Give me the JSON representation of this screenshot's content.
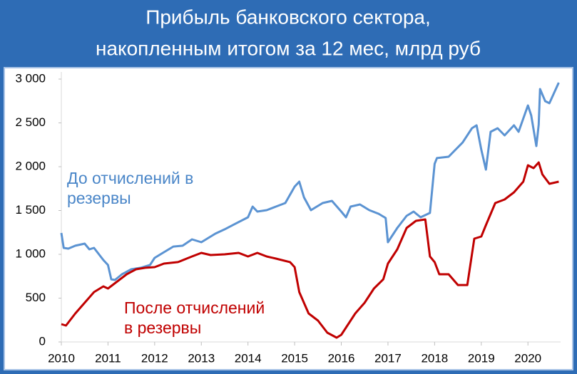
{
  "chart_data": {
    "type": "line",
    "title": [
      "Прибыль банковского сектора,",
      "накопленным итогом за 12 мес, млрд руб"
    ],
    "annotations": [
      {
        "lines": [
          "До отчислений в",
          "резервы"
        ],
        "color": "#4a86c8"
      },
      {
        "lines": [
          "После отчислений",
          "в резервы"
        ],
        "color": "#c00000"
      }
    ],
    "xlim": [
      2010,
      2020.7
    ],
    "xticks": [
      2010,
      2011,
      2012,
      2013,
      2014,
      2015,
      2016,
      2017,
      2018,
      2019,
      2020
    ],
    "ylim": [
      0,
      3000
    ],
    "yticks": [
      0,
      500,
      {
        "value": 1000,
        "label": "1 000"
      },
      {
        "value": 1500,
        "label": "1 500"
      },
      {
        "value": 2000,
        "label": "2 000"
      },
      {
        "value": 2500,
        "label": "2 500"
      },
      {
        "value": 3000,
        "label": "3 000"
      }
    ],
    "series": [
      {
        "color": "#5b93d2",
        "x": [
          2010.0,
          2010.05,
          2010.15,
          2010.3,
          2010.5,
          2010.6,
          2010.7,
          2010.9,
          2011.0,
          2011.07,
          2011.15,
          2011.3,
          2011.5,
          2011.7,
          2011.9,
          2012.0,
          2012.2,
          2012.4,
          2012.6,
          2012.8,
          2013.0,
          2013.3,
          2013.5,
          2013.7,
          2014.0,
          2014.1,
          2014.2,
          2014.4,
          2014.6,
          2014.8,
          2015.0,
          2015.1,
          2015.2,
          2015.35,
          2015.6,
          2015.8,
          2016.0,
          2016.1,
          2016.2,
          2016.4,
          2016.6,
          2016.8,
          2016.95,
          2017.0,
          2017.2,
          2017.4,
          2017.55,
          2017.7,
          2017.9,
          2018.0,
          2018.05,
          2018.3,
          2018.45,
          2018.6,
          2018.8,
          2018.9,
          2019.0,
          2019.1,
          2019.2,
          2019.35,
          2019.5,
          2019.7,
          2019.8,
          2020.0,
          2020.07,
          2020.18,
          2020.23,
          2020.26,
          2020.37,
          2020.46,
          2020.66
        ],
        "values": [
          1244,
          1073,
          1065,
          1098,
          1122,
          1057,
          1073,
          935,
          878,
          715,
          707,
          772,
          829,
          846,
          878,
          959,
          1024,
          1089,
          1098,
          1171,
          1138,
          1236,
          1285,
          1341,
          1423,
          1545,
          1488,
          1504,
          1545,
          1585,
          1772,
          1829,
          1650,
          1504,
          1585,
          1610,
          1488,
          1423,
          1545,
          1569,
          1504,
          1463,
          1415,
          1138,
          1301,
          1439,
          1488,
          1423,
          1472,
          2033,
          2098,
          2114,
          2195,
          2276,
          2439,
          2472,
          2195,
          1967,
          2398,
          2439,
          2358,
          2472,
          2398,
          2699,
          2585,
          2236,
          2480,
          2886,
          2748,
          2724,
          2959
        ]
      },
      {
        "color": "#c00000",
        "x": [
          2010.0,
          2010.1,
          2010.3,
          2010.5,
          2010.7,
          2010.9,
          2011.0,
          2011.2,
          2011.4,
          2011.6,
          2011.8,
          2012.0,
          2012.2,
          2012.5,
          2012.8,
          2013.0,
          2013.2,
          2013.5,
          2013.8,
          2014.0,
          2014.2,
          2014.4,
          2014.6,
          2014.9,
          2015.0,
          2015.1,
          2015.3,
          2015.5,
          2015.7,
          2015.9,
          2016.0,
          2016.15,
          2016.3,
          2016.5,
          2016.7,
          2016.9,
          2017.0,
          2017.2,
          2017.4,
          2017.6,
          2017.8,
          2017.9,
          2018.0,
          2018.1,
          2018.3,
          2018.5,
          2018.7,
          2018.85,
          2019.0,
          2019.1,
          2019.3,
          2019.5,
          2019.7,
          2019.9,
          2020.0,
          2020.12,
          2020.23,
          2020.31,
          2020.46,
          2020.66
        ],
        "values": [
          203,
          187,
          325,
          447,
          569,
          634,
          610,
          691,
          772,
          829,
          846,
          854,
          894,
          911,
          976,
          1016,
          992,
          1000,
          1016,
          976,
          1016,
          976,
          951,
          911,
          854,
          569,
          325,
          244,
          106,
          49,
          81,
          203,
          325,
          447,
          610,
          715,
          894,
          1057,
          1301,
          1382,
          1398,
          976,
          911,
          772,
          772,
          650,
          650,
          1179,
          1203,
          1333,
          1585,
          1626,
          1707,
          1829,
          2016,
          1984,
          2049,
          1911,
          1805,
          1829
        ]
      }
    ]
  }
}
